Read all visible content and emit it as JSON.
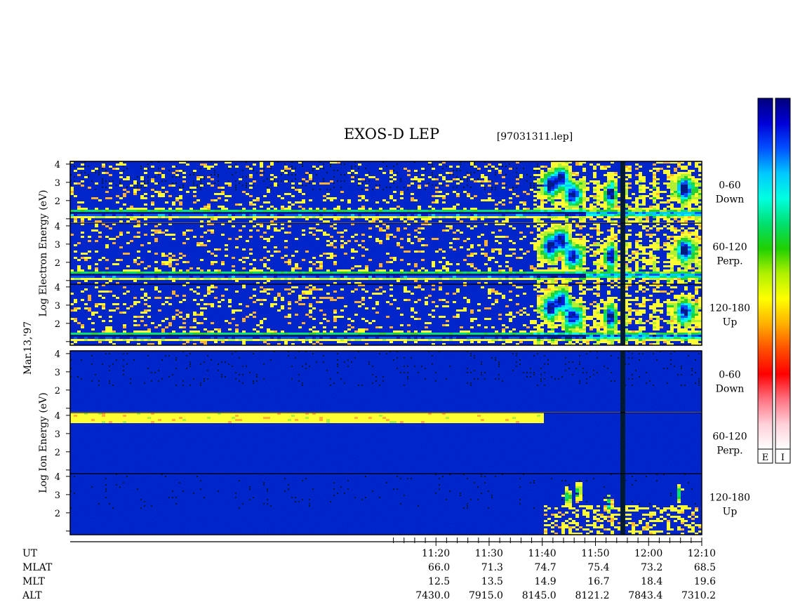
{
  "chart_data": {
    "type": "heatmap",
    "title": "EXOS-D LEP",
    "file_label": "[97031311.lep]",
    "date_label": "Mar.13,'97",
    "electron_axis_label": "Log   Electron   Energy   (eV)",
    "ion_axis_label": "Log   Ion   Energy   (eV)",
    "y_ticks": [
      "4",
      "3",
      "2"
    ],
    "ylim": [
      0.8,
      4.15
    ],
    "x_range_minutes": [
      11.2,
      130.0
    ],
    "x_ticks": [
      "11:20",
      "11:30",
      "11:40",
      "11:50",
      "12:00",
      "12:10"
    ],
    "x_tick_minutes": [
      80,
      90,
      100,
      110,
      120,
      130
    ],
    "data_gap_minutes": [
      114.7,
      115.6
    ],
    "panels": [
      {
        "species": "Electron",
        "pitch_angle": "0-60",
        "direction": "Down"
      },
      {
        "species": "Electron",
        "pitch_angle": "60-120",
        "direction": "Perp."
      },
      {
        "species": "Electron",
        "pitch_angle": "120-180",
        "direction": "Up"
      },
      {
        "species": "Ion",
        "pitch_angle": "0-60",
        "direction": "Down"
      },
      {
        "species": "Ion",
        "pitch_angle": "60-120",
        "direction": "Perp."
      },
      {
        "species": "Ion",
        "pitch_angle": "120-180",
        "direction": "Up"
      }
    ],
    "ephemeris": {
      "labels": [
        "UT",
        "MLAT",
        "MLT",
        "ALT"
      ],
      "rows": [
        [
          "66.0",
          "71.3",
          "74.7",
          "75.4",
          "73.2",
          "68.5"
        ],
        [
          "12.5",
          "13.5",
          "14.9",
          "16.7",
          "18.4",
          "19.6"
        ],
        [
          "7430.0",
          "7915.0",
          "8145.0",
          "8121.2",
          "7843.4",
          "7310.2"
        ]
      ]
    },
    "colorbar": {
      "labels": [
        "E",
        "I"
      ],
      "colors": [
        "#00007a",
        "#0000d8",
        "#0050ff",
        "#00c8ff",
        "#00ffe0",
        "#00e070",
        "#20d000",
        "#b0f000",
        "#ffff00",
        "#ffb000",
        "#ff5000",
        "#ff0000",
        "#ff7080",
        "#ffd0d8",
        "#ffffff"
      ]
    }
  }
}
